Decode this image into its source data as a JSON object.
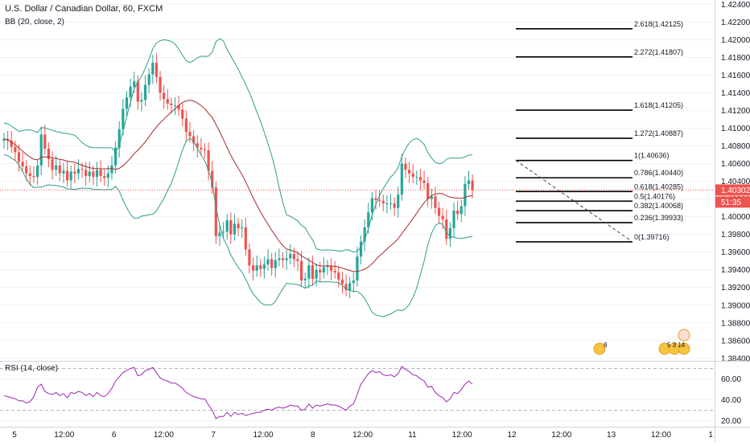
{
  "header": {
    "symbol": "U.S. Dollar / Canadian Dollar, 60, FXCM",
    "indicator": "BB (20, close, 2)",
    "rsi_label": "RSI (14, close)"
  },
  "colors": {
    "up": "#26a69a",
    "down": "#ef5350",
    "bb_band": "#2e9c8a",
    "bb_basis": "#a52a2a",
    "rsi": "#9c27b0",
    "fib": "#000000",
    "price_line": "#ef5350",
    "price_tag_bg": "#ef5350",
    "time_tag_bg": "#ef5350",
    "grid": "#f0f3fa",
    "axis_text": "#131722"
  },
  "price_axis": {
    "ticks": [
      "1.42400",
      "1.42200",
      "1.42000",
      "1.41800",
      "1.41600",
      "1.41400",
      "1.41200",
      "1.41000",
      "1.40800",
      "1.40600",
      "1.40400",
      "1.40200",
      "1.40000",
      "1.39800",
      "1.39600",
      "1.39400",
      "1.39200",
      "1.39000",
      "1.38800",
      "1.38600",
      "1.38400"
    ],
    "current_price": "1.40302",
    "countdown": "51:35"
  },
  "rsi_axis": {
    "ticks": [
      "60.00",
      "40.00",
      "20.00"
    ]
  },
  "time_axis": {
    "labels": [
      "5",
      "12:00",
      "6",
      "12:00",
      "7",
      "12:00",
      "8",
      "12:00",
      "11",
      "12:00",
      "12",
      "12:00",
      "13",
      "12:00",
      "1"
    ]
  },
  "fib_levels": [
    {
      "label": "2.618(1.42125)"
    },
    {
      "label": "2.272(1.41807)"
    },
    {
      "label": "1.618(1.41205)"
    },
    {
      "label": "1.272(1.40887)"
    },
    {
      "label": "1(1.40636)"
    },
    {
      "label": "0.786(1.40440)"
    },
    {
      "label": "0.618(1.40285)"
    },
    {
      "label": "0.5(1.40176)"
    },
    {
      "label": "0.382(1.40068)"
    },
    {
      "label": "0.236(1.39933)"
    },
    {
      "label": "0(1.39716)"
    }
  ],
  "events": {
    "us_badge": "8",
    "cluster": "5 3 14"
  },
  "chart_data": {
    "type": "candlestick",
    "title": "U.S. Dollar / Canadian Dollar, 60, FXCM",
    "ylim": [
      1.3838,
      1.4245
    ],
    "closes": [
      1.4088,
      1.4086,
      1.4079,
      1.4073,
      1.4062,
      1.4057,
      1.4049,
      1.4046,
      1.4045,
      1.4058,
      1.4093,
      1.4077,
      1.4065,
      1.4053,
      1.4058,
      1.4049,
      1.4052,
      1.4041,
      1.4051,
      1.4049,
      1.4054,
      1.4053,
      1.4046,
      1.4051,
      1.4045,
      1.4053,
      1.4046,
      1.4044,
      1.4049,
      1.4058,
      1.4078,
      1.4099,
      1.4122,
      1.4135,
      1.4147,
      1.4153,
      1.413,
      1.4132,
      1.4149,
      1.4161,
      1.4174,
      1.4158,
      1.414,
      1.4133,
      1.4128,
      1.4126,
      1.4126,
      1.4121,
      1.4111,
      1.4096,
      1.4091,
      1.4083,
      1.4078,
      1.4076,
      1.4075,
      1.4052,
      1.4033,
      1.3978,
      1.3982,
      1.3983,
      1.3996,
      1.398,
      1.3992,
      1.3987,
      1.3988,
      1.3963,
      1.3945,
      1.3939,
      1.3945,
      1.3941,
      1.3946,
      1.3952,
      1.3942,
      1.3951,
      1.3953,
      1.3951,
      1.3953,
      1.3958,
      1.3952,
      1.395,
      1.3928,
      1.393,
      1.3945,
      1.393,
      1.394,
      1.3937,
      1.3943,
      1.3944,
      1.3939,
      1.3937,
      1.3929,
      1.3924,
      1.3917,
      1.3925,
      1.3928,
      1.3955,
      1.3972,
      1.3988,
      1.4005,
      1.4021,
      1.4019,
      1.4018,
      1.4015,
      1.4015,
      1.4015,
      1.401,
      1.4025,
      1.406,
      1.4053,
      1.4049,
      1.4045,
      1.4045,
      1.4041,
      1.4038,
      1.402,
      1.4023,
      1.401,
      1.4001,
      1.3997,
      1.3975,
      1.3987,
      1.4007,
      1.4003,
      1.4012,
      1.4037,
      1.4041,
      1.403
    ],
    "opens_first": 1.4086,
    "rsi": [
      44,
      43,
      42,
      41,
      39,
      39,
      37,
      38,
      43,
      52,
      55,
      48,
      46,
      45,
      47,
      44,
      46,
      42,
      47,
      46,
      48,
      47,
      44,
      46,
      43,
      47,
      44,
      43,
      46,
      51,
      58,
      62,
      66,
      68,
      70,
      71,
      63,
      64,
      68,
      69,
      71,
      66,
      61,
      59,
      58,
      56,
      56,
      54,
      51,
      47,
      45,
      43,
      42,
      41,
      41,
      35,
      30,
      22,
      24,
      24,
      28,
      24,
      28,
      26,
      27,
      25,
      26,
      27,
      28,
      28,
      30,
      31,
      30,
      32,
      33,
      32,
      33,
      35,
      34,
      34,
      30,
      31,
      36,
      32,
      35,
      34,
      35,
      36,
      35,
      35,
      34,
      32,
      30,
      34,
      36,
      45,
      55,
      60,
      65,
      68,
      66,
      67,
      64,
      63,
      64,
      62,
      65,
      72,
      69,
      67,
      64,
      63,
      60,
      58,
      52,
      53,
      47,
      44,
      42,
      38,
      41,
      47,
      46,
      50,
      55,
      58,
      55
    ],
    "bb_period": 20,
    "bb_mult": 2,
    "rsi_ylim": [
      15,
      75
    ]
  }
}
